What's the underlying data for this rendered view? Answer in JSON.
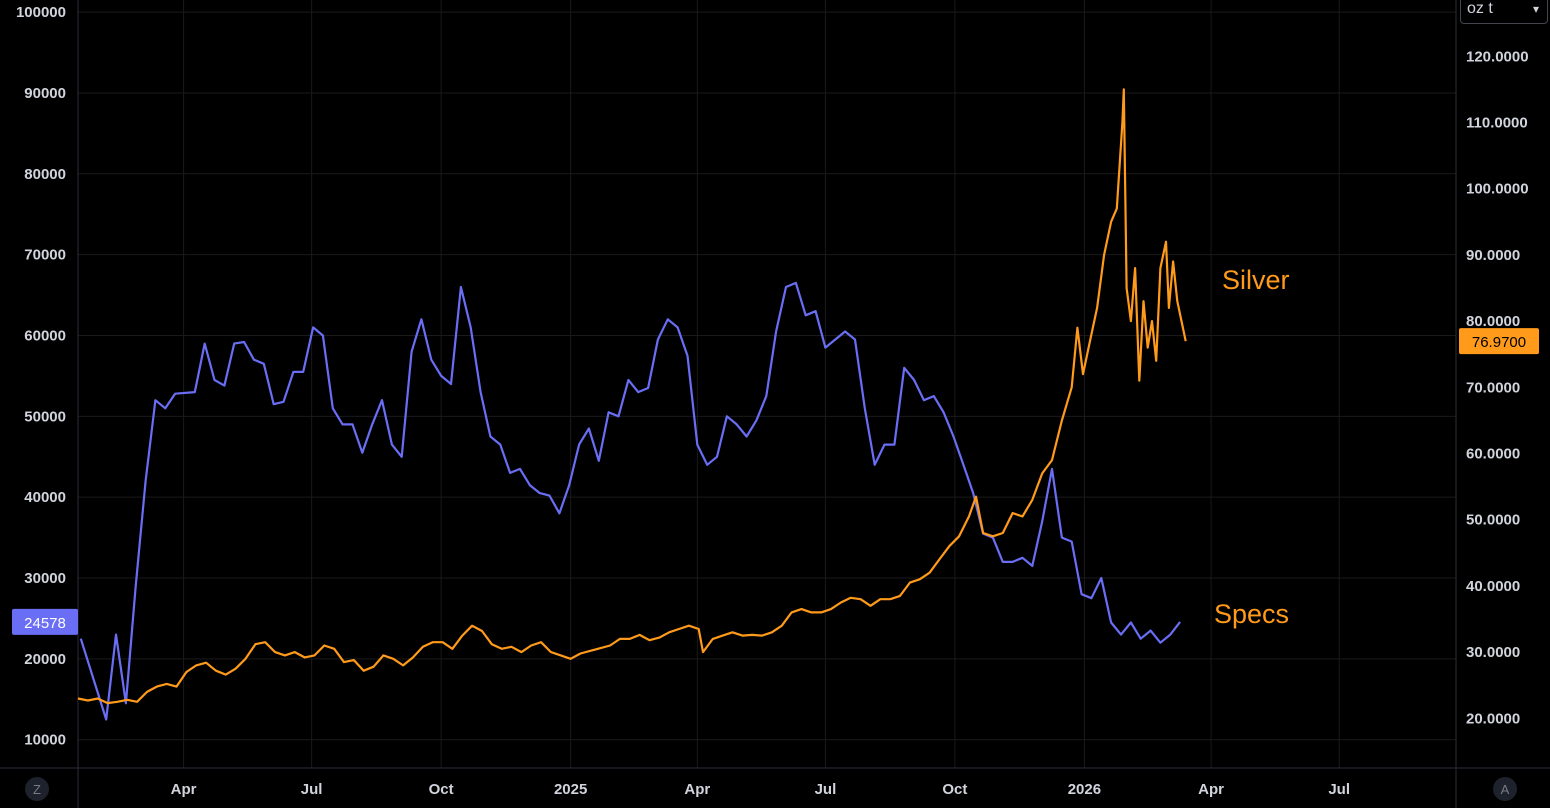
{
  "unit_select": {
    "value": "oz t",
    "chevron": "▾"
  },
  "corner_buttons": {
    "left": "Z",
    "right": "A"
  },
  "colors": {
    "specs": "#6a6ef5",
    "silver": "#ff9a1a",
    "grid": "#1a1a1a",
    "axis": "#2a2e39"
  },
  "chart_data": {
    "type": "line",
    "x_tick_labels": [
      {
        "date": "2024-04-01",
        "label": "Apr"
      },
      {
        "date": "2024-07-01",
        "label": "Jul"
      },
      {
        "date": "2024-10-01",
        "label": "Oct"
      },
      {
        "date": "2025-01-01",
        "label": "2025"
      },
      {
        "date": "2025-04-01",
        "label": "Apr"
      },
      {
        "date": "2025-07-01",
        "label": "Jul"
      },
      {
        "date": "2025-10-01",
        "label": "Oct"
      },
      {
        "date": "2026-01-01",
        "label": "2026"
      },
      {
        "date": "2026-04-01",
        "label": "Apr"
      },
      {
        "date": "2026-07-01",
        "label": "Jul"
      }
    ],
    "xlim": [
      "2024-01-17",
      "2026-09-22"
    ],
    "left_axis": {
      "ticks": [
        10000,
        20000,
        30000,
        40000,
        50000,
        60000,
        70000,
        80000,
        90000,
        100000
      ],
      "ylim": [
        6500,
        101500
      ]
    },
    "right_axis": {
      "ticks": [
        "20.0000",
        "30.0000",
        "40.0000",
        "50.0000",
        "60.0000",
        "70.0000",
        "80.0000",
        "90.0000",
        "100.0000",
        "110.0000",
        "120.0000"
      ],
      "ylim": [
        12.5,
        128.5
      ]
    },
    "last_value_labels": {
      "specs": "24578",
      "silver": "76.9700"
    },
    "annotations": {
      "silver": "Silver",
      "specs": "Specs"
    },
    "grid": true,
    "series": [
      {
        "key": "specs",
        "axis": "left",
        "points": [
          [
            "2024-01-19",
            22500
          ],
          [
            "2024-02-06",
            12500
          ],
          [
            "2024-02-13",
            23000
          ],
          [
            "2024-02-20",
            14500
          ],
          [
            "2024-02-27",
            29000
          ],
          [
            "2024-03-05",
            42000
          ],
          [
            "2024-03-12",
            52000
          ],
          [
            "2024-03-19",
            51000
          ],
          [
            "2024-03-26",
            52800
          ],
          [
            "2024-04-09",
            53000
          ],
          [
            "2024-04-16",
            59000
          ],
          [
            "2024-04-23",
            54500
          ],
          [
            "2024-04-30",
            53800
          ],
          [
            "2024-05-07",
            59000
          ],
          [
            "2024-05-14",
            59200
          ],
          [
            "2024-05-21",
            57000
          ],
          [
            "2024-05-28",
            56500
          ],
          [
            "2024-06-04",
            51500
          ],
          [
            "2024-06-11",
            51800
          ],
          [
            "2024-06-18",
            55500
          ],
          [
            "2024-06-25",
            55500
          ],
          [
            "2024-07-02",
            61000
          ],
          [
            "2024-07-09",
            60000
          ],
          [
            "2024-07-16",
            51000
          ],
          [
            "2024-07-23",
            49000
          ],
          [
            "2024-07-30",
            49000
          ],
          [
            "2024-08-06",
            45500
          ],
          [
            "2024-08-13",
            49000
          ],
          [
            "2024-08-20",
            52000
          ],
          [
            "2024-08-27",
            46500
          ],
          [
            "2024-09-03",
            45000
          ],
          [
            "2024-09-10",
            58000
          ],
          [
            "2024-09-17",
            62000
          ],
          [
            "2024-09-24",
            57000
          ],
          [
            "2024-10-01",
            55000
          ],
          [
            "2024-10-08",
            54000
          ],
          [
            "2024-10-15",
            66000
          ],
          [
            "2024-10-22",
            61000
          ],
          [
            "2024-10-29",
            53000
          ],
          [
            "2024-11-05",
            47500
          ],
          [
            "2024-11-12",
            46500
          ],
          [
            "2024-11-19",
            43000
          ],
          [
            "2024-11-26",
            43500
          ],
          [
            "2024-12-03",
            41500
          ],
          [
            "2024-12-10",
            40500
          ],
          [
            "2024-12-17",
            40200
          ],
          [
            "2024-12-24",
            38000
          ],
          [
            "2024-12-31",
            41500
          ],
          [
            "2025-01-07",
            46500
          ],
          [
            "2025-01-14",
            48500
          ],
          [
            "2025-01-21",
            44500
          ],
          [
            "2025-01-28",
            50500
          ],
          [
            "2025-02-04",
            50000
          ],
          [
            "2025-02-11",
            54500
          ],
          [
            "2025-02-18",
            53000
          ],
          [
            "2025-02-25",
            53500
          ],
          [
            "2025-03-04",
            59500
          ],
          [
            "2025-03-11",
            62000
          ],
          [
            "2025-03-18",
            61000
          ],
          [
            "2025-03-25",
            57500
          ],
          [
            "2025-04-01",
            46500
          ],
          [
            "2025-04-08",
            44000
          ],
          [
            "2025-04-15",
            45000
          ],
          [
            "2025-04-22",
            50000
          ],
          [
            "2025-04-29",
            49000
          ],
          [
            "2025-05-06",
            47500
          ],
          [
            "2025-05-13",
            49500
          ],
          [
            "2025-05-20",
            52500
          ],
          [
            "2025-05-27",
            60500
          ],
          [
            "2025-06-03",
            66000
          ],
          [
            "2025-06-10",
            66500
          ],
          [
            "2025-06-17",
            62500
          ],
          [
            "2025-06-24",
            63000
          ],
          [
            "2025-07-01",
            58500
          ],
          [
            "2025-07-08",
            59500
          ],
          [
            "2025-07-15",
            60500
          ],
          [
            "2025-07-22",
            59500
          ],
          [
            "2025-07-29",
            51000
          ],
          [
            "2025-08-05",
            44000
          ],
          [
            "2025-08-12",
            46500
          ],
          [
            "2025-08-19",
            46500
          ],
          [
            "2025-08-26",
            56000
          ],
          [
            "2025-09-02",
            54500
          ],
          [
            "2025-09-09",
            52000
          ],
          [
            "2025-09-16",
            52500
          ],
          [
            "2025-09-23",
            50500
          ],
          [
            "2025-09-30",
            47500
          ],
          [
            "2025-10-07",
            44000
          ],
          [
            "2025-10-14",
            40500
          ],
          [
            "2025-10-21",
            35500
          ],
          [
            "2025-10-28",
            35000
          ],
          [
            "2025-11-04",
            32000
          ],
          [
            "2025-11-11",
            32000
          ],
          [
            "2025-11-18",
            32500
          ],
          [
            "2025-11-25",
            31500
          ],
          [
            "2025-12-02",
            37000
          ],
          [
            "2025-12-09",
            43500
          ],
          [
            "2025-12-16",
            35000
          ],
          [
            "2025-12-23",
            34500
          ],
          [
            "2025-12-30",
            28000
          ],
          [
            "2026-01-06",
            27500
          ],
          [
            "2026-01-13",
            30000
          ],
          [
            "2026-01-20",
            24500
          ],
          [
            "2026-01-27",
            23000
          ],
          [
            "2026-02-03",
            24500
          ],
          [
            "2026-02-10",
            22500
          ],
          [
            "2026-02-17",
            23500
          ],
          [
            "2026-02-24",
            22000
          ],
          [
            "2026-03-03",
            23000
          ],
          [
            "2026-03-10",
            24578
          ]
        ]
      },
      {
        "key": "silver",
        "axis": "right",
        "points": [
          [
            "2024-01-17",
            23.0
          ],
          [
            "2024-01-24",
            22.7
          ],
          [
            "2024-01-31",
            23.0
          ],
          [
            "2024-02-07",
            22.3
          ],
          [
            "2024-02-14",
            22.5
          ],
          [
            "2024-02-21",
            22.8
          ],
          [
            "2024-02-28",
            22.5
          ],
          [
            "2024-03-06",
            24.0
          ],
          [
            "2024-03-13",
            24.8
          ],
          [
            "2024-03-20",
            25.2
          ],
          [
            "2024-03-27",
            24.8
          ],
          [
            "2024-04-03",
            27.0
          ],
          [
            "2024-04-10",
            28.0
          ],
          [
            "2024-04-17",
            28.4
          ],
          [
            "2024-04-24",
            27.2
          ],
          [
            "2024-05-01",
            26.6
          ],
          [
            "2024-05-08",
            27.5
          ],
          [
            "2024-05-15",
            29.0
          ],
          [
            "2024-05-22",
            31.2
          ],
          [
            "2024-05-29",
            31.5
          ],
          [
            "2024-06-05",
            30.0
          ],
          [
            "2024-06-12",
            29.5
          ],
          [
            "2024-06-19",
            30.0
          ],
          [
            "2024-06-26",
            29.2
          ],
          [
            "2024-07-03",
            29.5
          ],
          [
            "2024-07-10",
            31.0
          ],
          [
            "2024-07-17",
            30.5
          ],
          [
            "2024-07-24",
            28.5
          ],
          [
            "2024-07-31",
            28.8
          ],
          [
            "2024-08-07",
            27.2
          ],
          [
            "2024-08-14",
            27.8
          ],
          [
            "2024-08-21",
            29.5
          ],
          [
            "2024-08-28",
            29.0
          ],
          [
            "2024-09-04",
            28.0
          ],
          [
            "2024-09-11",
            29.2
          ],
          [
            "2024-09-18",
            30.8
          ],
          [
            "2024-09-25",
            31.5
          ],
          [
            "2024-10-02",
            31.5
          ],
          [
            "2024-10-09",
            30.5
          ],
          [
            "2024-10-16",
            32.5
          ],
          [
            "2024-10-23",
            34.0
          ],
          [
            "2024-10-30",
            33.2
          ],
          [
            "2024-11-06",
            31.2
          ],
          [
            "2024-11-13",
            30.5
          ],
          [
            "2024-11-20",
            30.8
          ],
          [
            "2024-11-27",
            30.0
          ],
          [
            "2024-12-04",
            31.0
          ],
          [
            "2024-12-11",
            31.5
          ],
          [
            "2024-12-18",
            30.0
          ],
          [
            "2024-12-25",
            29.5
          ],
          [
            "2025-01-01",
            29.0
          ],
          [
            "2025-01-08",
            29.8
          ],
          [
            "2025-01-15",
            30.2
          ],
          [
            "2025-01-22",
            30.6
          ],
          [
            "2025-01-29",
            31.0
          ],
          [
            "2025-02-05",
            32.0
          ],
          [
            "2025-02-12",
            32.0
          ],
          [
            "2025-02-19",
            32.6
          ],
          [
            "2025-02-26",
            31.8
          ],
          [
            "2025-03-05",
            32.2
          ],
          [
            "2025-03-12",
            33.0
          ],
          [
            "2025-03-19",
            33.5
          ],
          [
            "2025-03-26",
            34.0
          ],
          [
            "2025-04-02",
            33.5
          ],
          [
            "2025-04-05",
            30.0
          ],
          [
            "2025-04-12",
            32.0
          ],
          [
            "2025-04-19",
            32.5
          ],
          [
            "2025-04-26",
            33.0
          ],
          [
            "2025-05-03",
            32.5
          ],
          [
            "2025-05-10",
            32.6
          ],
          [
            "2025-05-17",
            32.5
          ],
          [
            "2025-05-24",
            33.0
          ],
          [
            "2025-05-31",
            34.0
          ],
          [
            "2025-06-07",
            36.0
          ],
          [
            "2025-06-14",
            36.5
          ],
          [
            "2025-06-21",
            36.0
          ],
          [
            "2025-06-28",
            36.0
          ],
          [
            "2025-07-05",
            36.5
          ],
          [
            "2025-07-12",
            37.5
          ],
          [
            "2025-07-19",
            38.2
          ],
          [
            "2025-07-26",
            38.0
          ],
          [
            "2025-08-02",
            37.0
          ],
          [
            "2025-08-09",
            38.0
          ],
          [
            "2025-08-16",
            38.0
          ],
          [
            "2025-08-23",
            38.5
          ],
          [
            "2025-08-30",
            40.5
          ],
          [
            "2025-09-06",
            41.0
          ],
          [
            "2025-09-13",
            42.0
          ],
          [
            "2025-09-20",
            44.0
          ],
          [
            "2025-09-27",
            46.0
          ],
          [
            "2025-10-04",
            47.5
          ],
          [
            "2025-10-11",
            50.5
          ],
          [
            "2025-10-16",
            53.5
          ],
          [
            "2025-10-21",
            48.0
          ],
          [
            "2025-10-28",
            47.5
          ],
          [
            "2025-11-04",
            48.0
          ],
          [
            "2025-11-11",
            51.0
          ],
          [
            "2025-11-18",
            50.5
          ],
          [
            "2025-11-25",
            53.0
          ],
          [
            "2025-12-02",
            57.0
          ],
          [
            "2025-12-09",
            59.0
          ],
          [
            "2025-12-16",
            65.0
          ],
          [
            "2025-12-23",
            70.0
          ],
          [
            "2025-12-27",
            79.0
          ],
          [
            "2025-12-31",
            72.0
          ],
          [
            "2026-01-05",
            77.0
          ],
          [
            "2026-01-10",
            82.0
          ],
          [
            "2026-01-15",
            90.0
          ],
          [
            "2026-01-20",
            95.0
          ],
          [
            "2026-01-24",
            97.0
          ],
          [
            "2026-01-28",
            110.0
          ],
          [
            "2026-01-29",
            115.0
          ],
          [
            "2026-01-31",
            85.0
          ],
          [
            "2026-02-03",
            80.0
          ],
          [
            "2026-02-06",
            88.0
          ],
          [
            "2026-02-09",
            71.0
          ],
          [
            "2026-02-12",
            83.0
          ],
          [
            "2026-02-15",
            76.0
          ],
          [
            "2026-02-18",
            80.0
          ],
          [
            "2026-02-21",
            74.0
          ],
          [
            "2026-02-24",
            88.0
          ],
          [
            "2026-02-28",
            92.0
          ],
          [
            "2026-03-02",
            82.0
          ],
          [
            "2026-03-05",
            89.0
          ],
          [
            "2026-03-08",
            83.0
          ],
          [
            "2026-03-11",
            80.0
          ],
          [
            "2026-03-14",
            76.97
          ]
        ]
      }
    ]
  }
}
